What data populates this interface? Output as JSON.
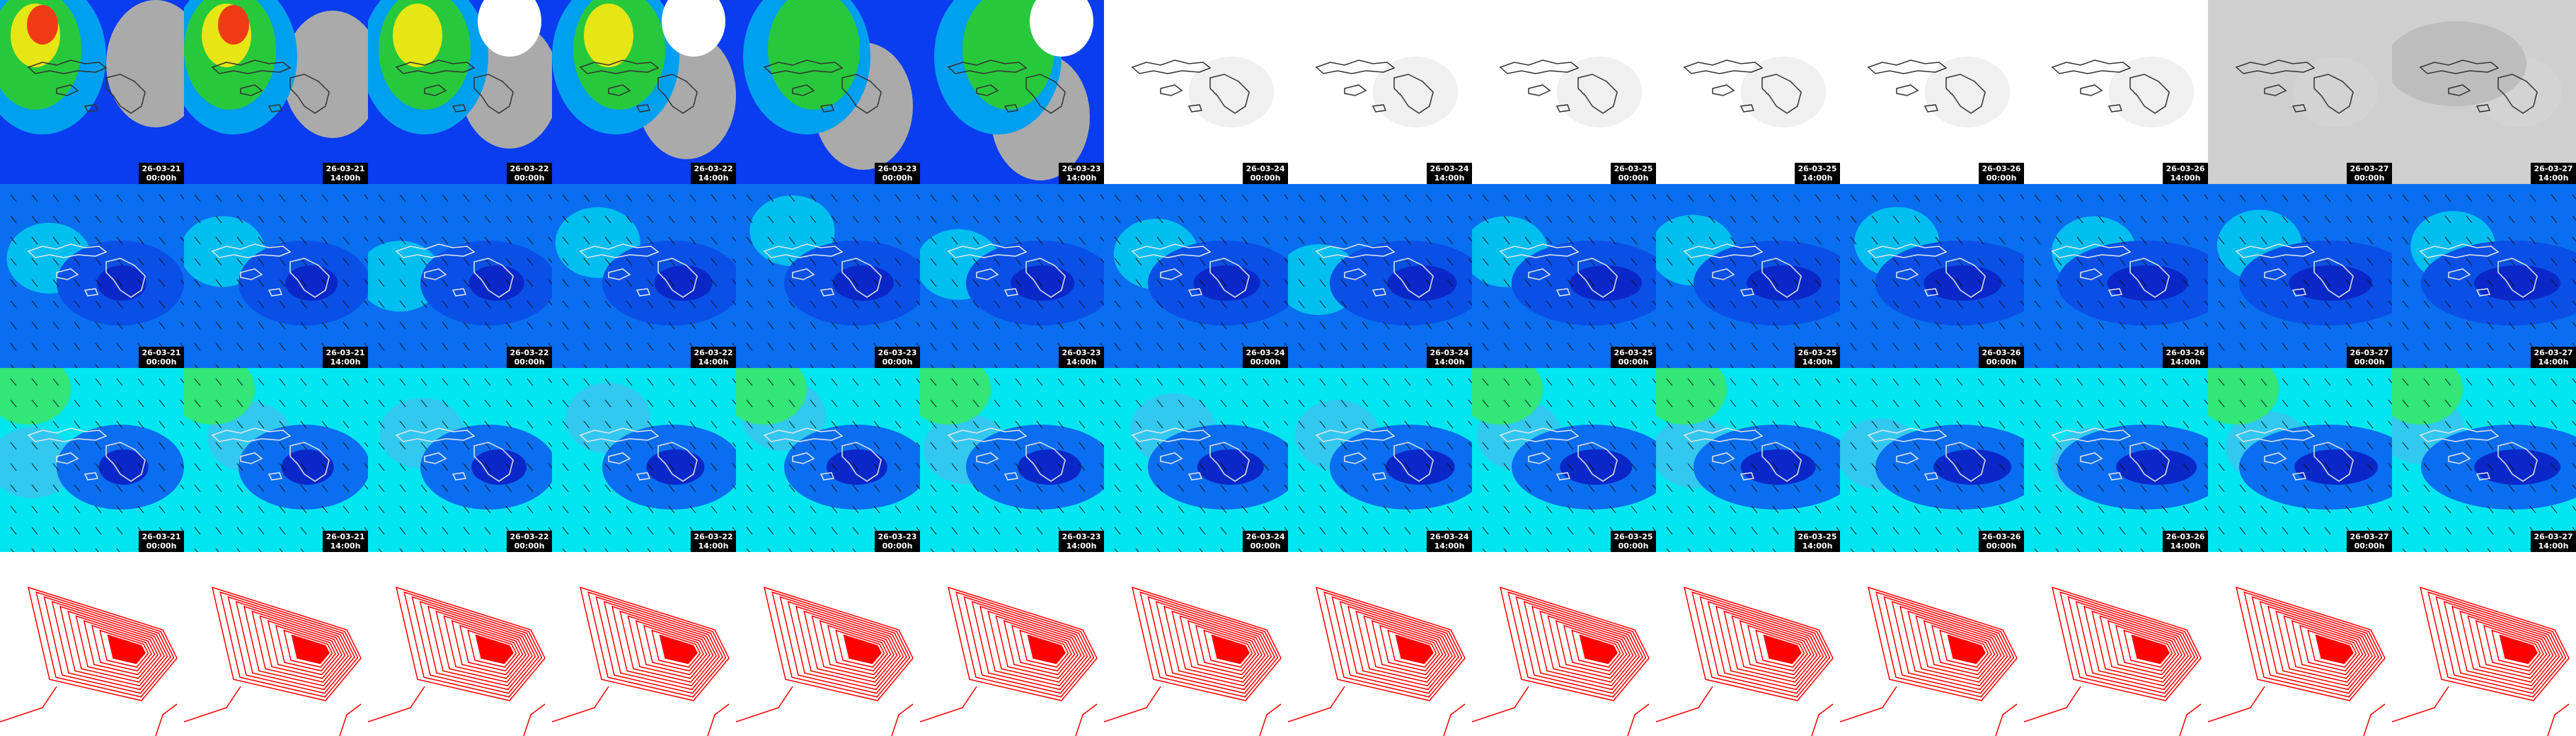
{
  "columns": [
    {
      "date": "26-03-21",
      "time": "00:00h"
    },
    {
      "date": "26-03-21",
      "time": "14:00h"
    },
    {
      "date": "26-03-22",
      "time": "00:00h"
    },
    {
      "date": "26-03-22",
      "time": "14:00h"
    },
    {
      "date": "26-03-23",
      "time": "00:00h"
    },
    {
      "date": "26-03-23",
      "time": "14:00h"
    },
    {
      "date": "26-03-24",
      "time": "00:00h"
    },
    {
      "date": "26-03-24",
      "time": "14:00h"
    },
    {
      "date": "26-03-25",
      "time": "00:00h"
    },
    {
      "date": "26-03-25",
      "time": "14:00h"
    },
    {
      "date": "26-03-26",
      "time": "00:00h"
    },
    {
      "date": "26-03-26",
      "time": "14:00h"
    },
    {
      "date": "26-03-27",
      "time": "00:00h"
    },
    {
      "date": "26-03-27",
      "time": "14:00h"
    }
  ]
}
